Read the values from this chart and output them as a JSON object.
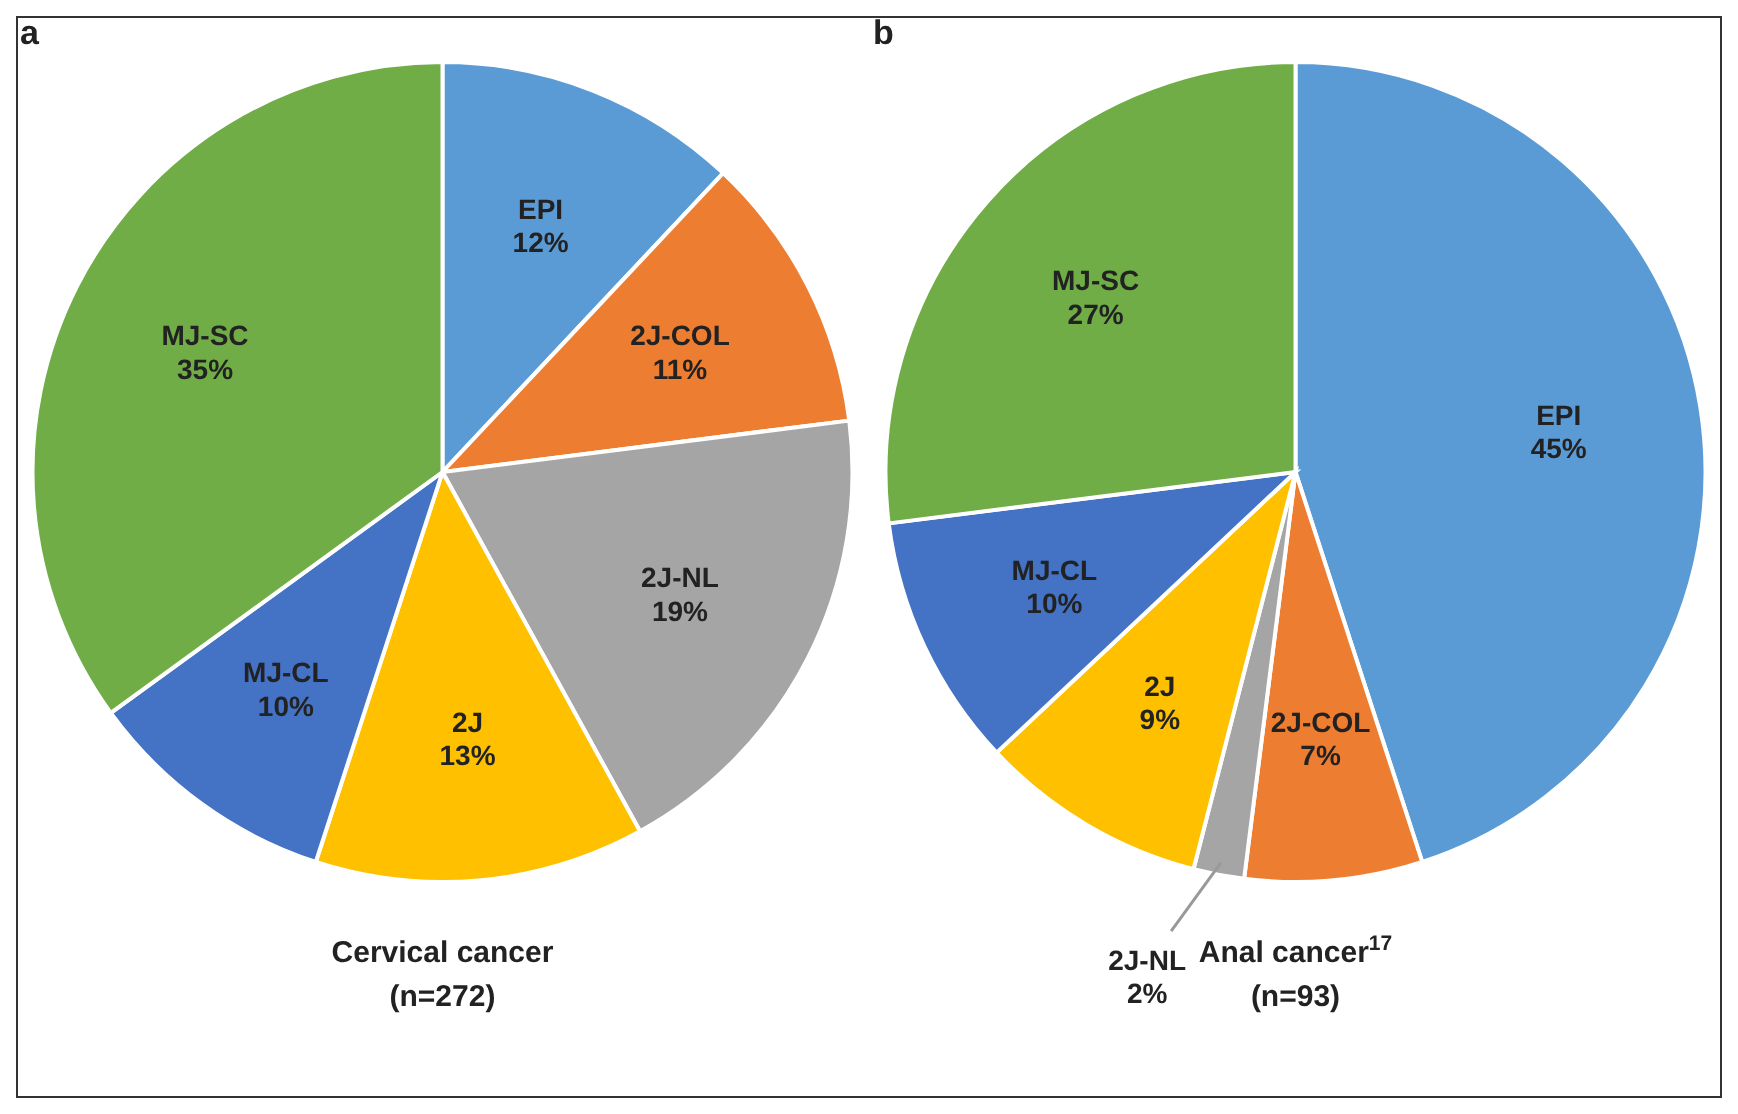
{
  "chart_data": [
    {
      "type": "pie",
      "title": "Cervical cancer",
      "subtitle": "(n=272)",
      "annotations": [
        "a"
      ],
      "categories": [
        "EPI",
        "2J-COL",
        "2J-NL",
        "2J",
        "MJ-CL",
        "MJ-SC"
      ],
      "values": [
        12,
        11,
        19,
        13,
        10,
        35
      ],
      "value_labels": [
        "12%",
        "11%",
        "19%",
        "13%",
        "10%",
        "35%"
      ],
      "colors": [
        "#5b9bd5",
        "#ed7d31",
        "#a5a5a5",
        "#ffc000",
        "#4472c4",
        "#70ad47"
      ]
    },
    {
      "type": "pie",
      "title": "Anal cancer$^{17}$",
      "subtitle": "(n=93)",
      "annotations": [
        "b"
      ],
      "categories": [
        "EPI",
        "2J-COL",
        "2J-NL",
        "2J",
        "MJ-CL",
        "MJ-SC"
      ],
      "values": [
        45,
        7,
        2,
        9,
        10,
        27
      ],
      "value_labels": [
        "45%",
        "7%",
        "2%",
        "9%",
        "10%",
        "27%"
      ],
      "colors": [
        "#5b9bd5",
        "#ed7d31",
        "#a5a5a5",
        "#ffc000",
        "#4472c4",
        "#70ad47"
      ]
    }
  ]
}
